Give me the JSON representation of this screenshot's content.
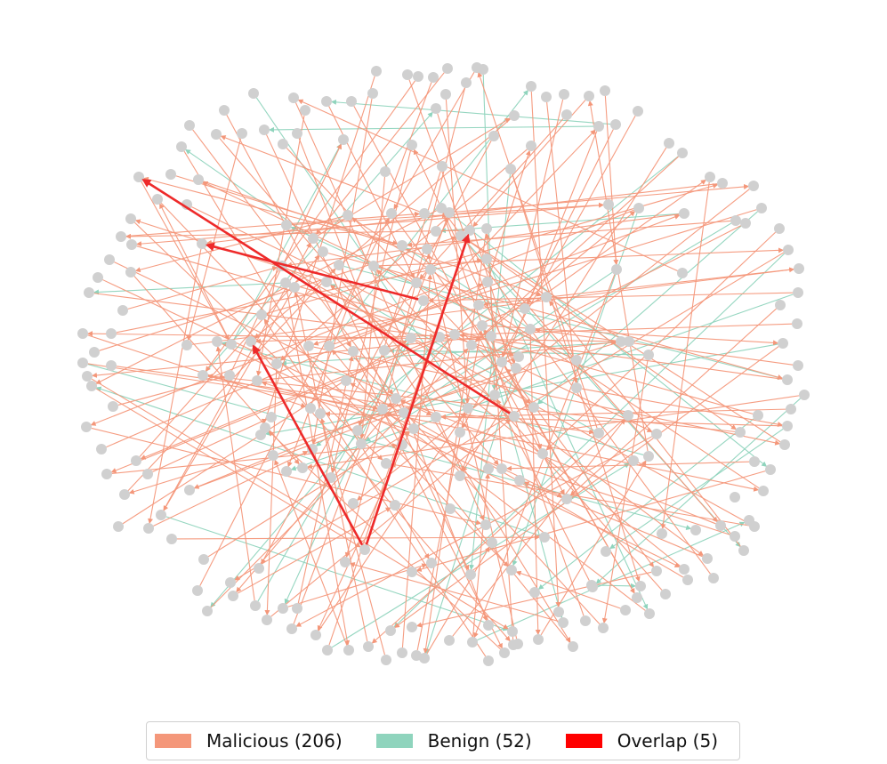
{
  "colors": {
    "malicious": "#f4977a",
    "benign": "#8fd4bd",
    "overlap": "#ff0000",
    "overlap_edge": "#ee2a2a",
    "node": "#d0d0d0"
  },
  "legend": {
    "items": [
      {
        "key": "malicious",
        "label": "Malicious (206)"
      },
      {
        "key": "benign",
        "label": "Benign (52)"
      },
      {
        "key": "overlap",
        "label": "Overlap (5)"
      }
    ]
  }
}
